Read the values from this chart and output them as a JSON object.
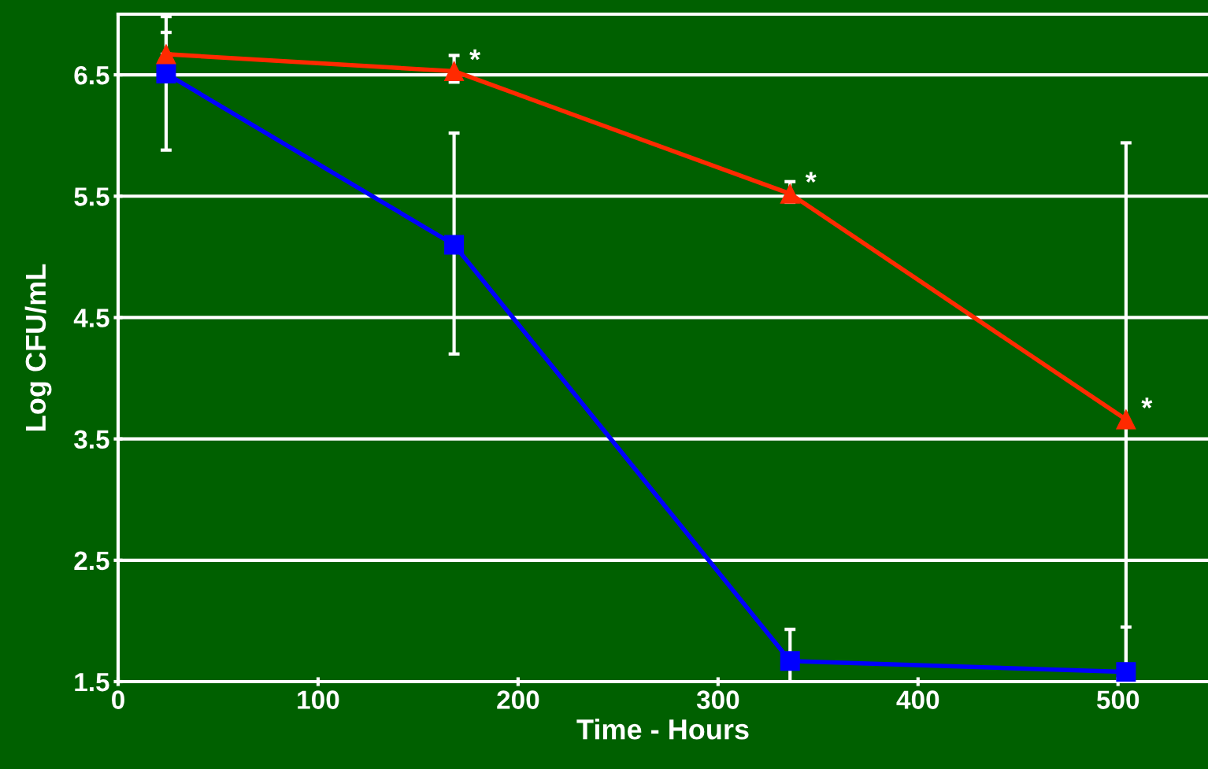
{
  "chart_data": {
    "type": "line",
    "xlabel": "Time - Hours",
    "ylabel": "Log CFU/mL",
    "x": [
      24,
      168,
      336,
      504
    ],
    "series": [
      {
        "color": "#0000ff",
        "marker": "square",
        "values": [
          6.51,
          5.1,
          1.67,
          1.58
        ],
        "errors": [
          [
            5.88,
            6.85
          ],
          [
            4.2,
            6.02
          ],
          [
            1.5,
            1.93
          ],
          [
            1.5,
            1.95
          ]
        ]
      },
      {
        "color": "#ff2a00",
        "marker": "triangle",
        "values": [
          6.67,
          6.53,
          5.52,
          3.66
        ],
        "errors": [
          [
            6.67,
            6.98
          ],
          [
            6.44,
            6.66
          ],
          [
            5.45,
            5.62
          ],
          [
            1.5,
            5.94
          ]
        ]
      }
    ],
    "annotations": [
      {
        "text": "*",
        "x": 168,
        "y": 6.53
      },
      {
        "text": "*",
        "x": 336,
        "y": 5.52
      },
      {
        "text": "*",
        "x": 504,
        "y": 3.66
      }
    ],
    "xlim": [
      0,
      545
    ],
    "ylim": [
      1.5,
      7.0
    ],
    "xticks": [
      0,
      100,
      200,
      300,
      400,
      500
    ],
    "yticks": [
      1.5,
      2.5,
      3.5,
      4.5,
      5.5,
      6.5
    ],
    "grid": "y",
    "legend": false,
    "line_style": "solid"
  }
}
